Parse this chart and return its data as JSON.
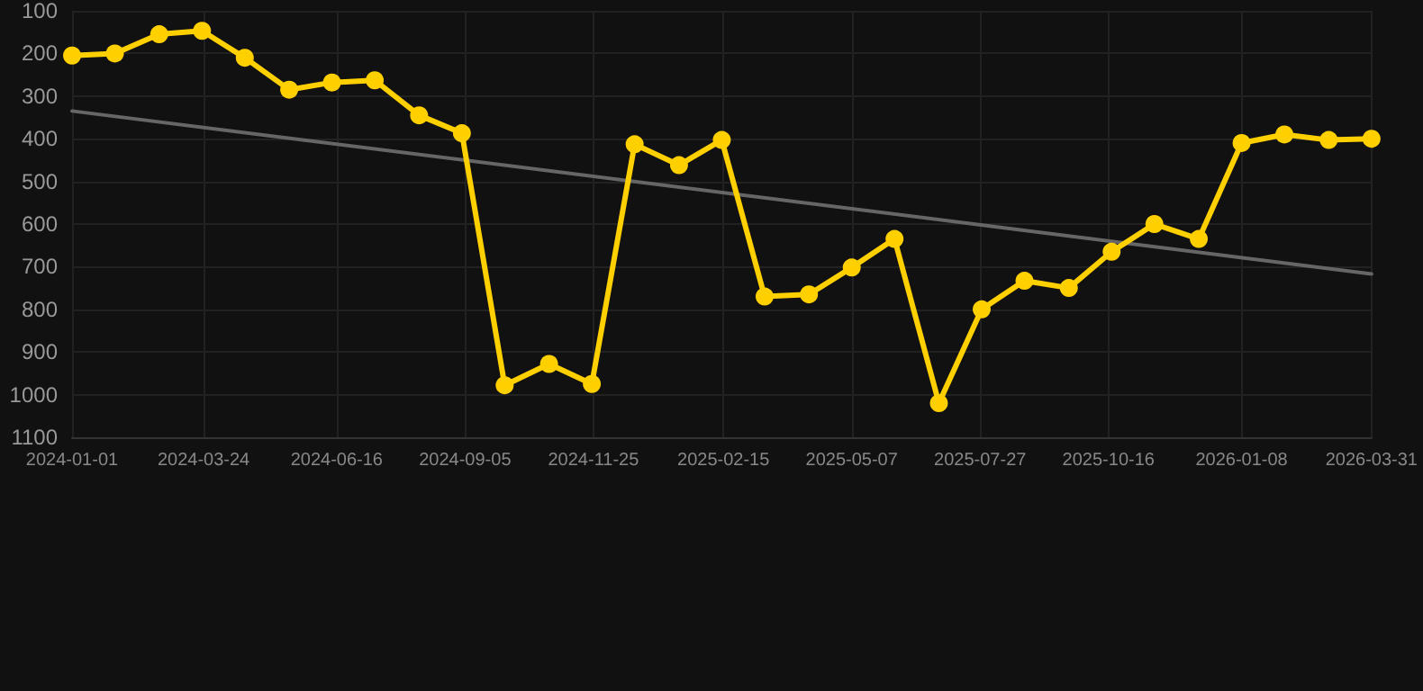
{
  "chart_data": {
    "type": "line",
    "x": [
      "2024-01-01",
      "2024-01-28",
      "2024-02-25",
      "2024-03-23",
      "2024-04-19",
      "2024-05-17",
      "2024-06-13",
      "2024-07-10",
      "2024-08-07",
      "2024-09-03",
      "2024-09-30",
      "2024-10-28",
      "2024-11-24",
      "2024-12-21",
      "2025-01-18",
      "2025-02-14",
      "2025-03-13",
      "2025-04-10",
      "2025-05-07",
      "2025-06-03",
      "2025-07-01",
      "2025-07-28",
      "2025-08-24",
      "2025-09-21",
      "2025-10-18",
      "2025-11-14",
      "2025-12-12",
      "2026-01-08",
      "2026-02-04",
      "2026-03-04",
      "2026-03-31"
    ],
    "series": [
      {
        "color": "#ffd000",
        "marker": "circle",
        "values": [
          205,
          200,
          155,
          147,
          210,
          285,
          268,
          263,
          345,
          387,
          978,
          928,
          975,
          413,
          462,
          403,
          770,
          765,
          702,
          635,
          1020,
          800,
          733,
          750,
          665,
          600,
          635,
          410,
          390,
          403,
          400
        ]
      },
      {
        "type": "line",
        "color": "#666666",
        "marker": "none",
        "x": [
          "2024-01-01",
          "2026-03-31"
        ],
        "values": [
          335,
          717
        ]
      }
    ],
    "xlim": [
      "2024-01-01",
      "2026-03-31"
    ],
    "xticks": [
      "2024-01-01",
      "2024-03-24",
      "2024-06-16",
      "2024-09-05",
      "2024-11-25",
      "2025-02-15",
      "2025-05-07",
      "2025-07-27",
      "2025-10-16",
      "2026-01-08",
      "2026-03-31"
    ],
    "ylim": [
      1100,
      100
    ],
    "yticks": [
      100,
      200,
      300,
      400,
      500,
      600,
      700,
      800,
      900,
      1000,
      1100
    ],
    "grid": true,
    "line_style": "solid"
  }
}
